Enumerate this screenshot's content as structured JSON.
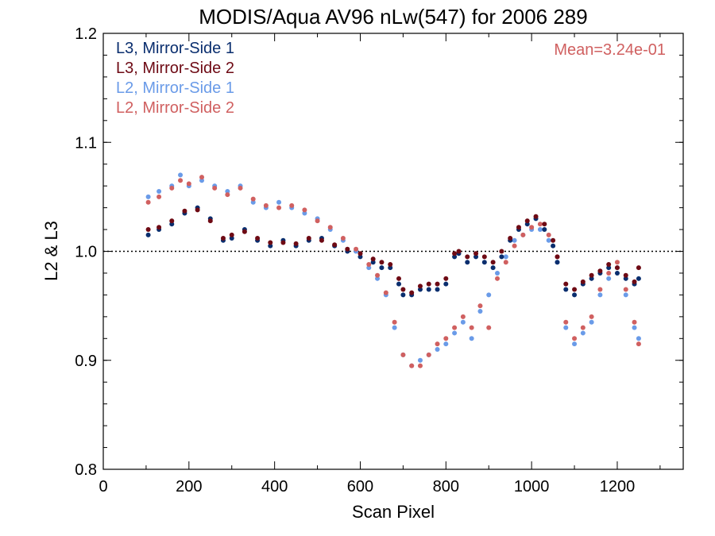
{
  "chart_data": {
    "type": "scatter",
    "title": "MODIS/Aqua AV96 nLw(547) for 2006 289",
    "xlabel": "Scan Pixel",
    "ylabel": "L2 & L3",
    "xlim": [
      0,
      1354
    ],
    "ylim": [
      0.8,
      1.2
    ],
    "x_ticks": [
      0,
      200,
      400,
      600,
      800,
      1000,
      1200
    ],
    "x_tick_labels": [
      "0",
      "200",
      "400",
      "600",
      "800",
      "1000",
      "1200"
    ],
    "y_ticks": [
      0.8,
      0.9,
      1.0,
      1.1,
      1.2
    ],
    "y_tick_labels": [
      "0.8",
      "0.9",
      "1.0",
      "1.1",
      "1.2"
    ],
    "reference_line": {
      "y": 1.0,
      "style": "dotted"
    },
    "annotation": {
      "text": "Mean=3.24e-01",
      "color": "#d06060",
      "placement": "top-right"
    },
    "legend_placement": "top-left",
    "grid": false,
    "series": [
      {
        "name": "L3, Mirror-Side 1",
        "color": "#0a2e6e",
        "x": [
          105,
          130,
          160,
          190,
          220,
          250,
          280,
          300,
          330,
          360,
          390,
          420,
          450,
          480,
          510,
          540,
          570,
          600,
          630,
          650,
          670,
          690,
          700,
          720,
          740,
          760,
          780,
          800,
          820,
          830,
          850,
          870,
          890,
          910,
          930,
          950,
          970,
          990,
          1010,
          1030,
          1050,
          1060,
          1080,
          1100,
          1120,
          1140,
          1160,
          1180,
          1200,
          1220,
          1240,
          1250
        ],
        "y": [
          1.015,
          1.02,
          1.025,
          1.035,
          1.04,
          1.03,
          1.01,
          1.012,
          1.02,
          1.01,
          1.005,
          1.01,
          1.005,
          1.01,
          1.012,
          1.005,
          1.0,
          0.995,
          0.99,
          0.985,
          0.985,
          0.97,
          0.96,
          0.96,
          0.965,
          0.965,
          0.965,
          0.97,
          0.995,
          0.998,
          0.99,
          0.995,
          0.99,
          0.985,
          0.995,
          1.01,
          1.02,
          1.025,
          1.03,
          1.02,
          1.005,
          0.99,
          0.965,
          0.96,
          0.97,
          0.975,
          0.98,
          0.985,
          0.98,
          0.975,
          0.97,
          0.975
        ]
      },
      {
        "name": "L3, Mirror-Side 2",
        "color": "#6e0a14",
        "x": [
          105,
          130,
          160,
          190,
          220,
          250,
          280,
          300,
          330,
          360,
          390,
          420,
          450,
          480,
          510,
          540,
          570,
          600,
          630,
          650,
          670,
          690,
          700,
          720,
          740,
          760,
          780,
          800,
          820,
          830,
          850,
          870,
          890,
          910,
          930,
          950,
          970,
          990,
          1010,
          1030,
          1050,
          1060,
          1080,
          1100,
          1120,
          1140,
          1160,
          1180,
          1200,
          1220,
          1240,
          1250
        ],
        "y": [
          1.02,
          1.022,
          1.028,
          1.037,
          1.038,
          1.028,
          1.012,
          1.015,
          1.018,
          1.012,
          1.008,
          1.008,
          1.007,
          1.012,
          1.01,
          1.006,
          1.002,
          0.998,
          0.993,
          0.99,
          0.988,
          0.975,
          0.965,
          0.962,
          0.968,
          0.97,
          0.97,
          0.975,
          0.998,
          1.0,
          0.995,
          0.998,
          0.995,
          0.99,
          1.0,
          1.012,
          1.022,
          1.028,
          1.032,
          1.025,
          1.01,
          0.995,
          0.97,
          0.965,
          0.972,
          0.978,
          0.982,
          0.988,
          0.985,
          0.978,
          0.972,
          0.985
        ]
      },
      {
        "name": "L2, Mirror-Side 1",
        "color": "#6a9be8",
        "x": [
          105,
          130,
          160,
          180,
          200,
          230,
          260,
          290,
          320,
          350,
          380,
          410,
          440,
          470,
          500,
          530,
          560,
          590,
          620,
          640,
          660,
          680,
          700,
          720,
          740,
          760,
          780,
          800,
          820,
          840,
          860,
          880,
          900,
          920,
          940,
          960,
          980,
          1000,
          1020,
          1040,
          1060,
          1080,
          1100,
          1120,
          1140,
          1160,
          1180,
          1200,
          1220,
          1240,
          1250
        ],
        "y": [
          1.05,
          1.055,
          1.06,
          1.07,
          1.06,
          1.065,
          1.06,
          1.055,
          1.06,
          1.045,
          1.04,
          1.045,
          1.04,
          1.035,
          1.03,
          1.02,
          1.01,
          1.0,
          0.985,
          0.975,
          0.96,
          0.93,
          0.905,
          0.895,
          0.9,
          0.905,
          0.91,
          0.915,
          0.925,
          0.935,
          0.92,
          0.945,
          0.96,
          0.98,
          0.995,
          1.01,
          1.015,
          1.02,
          1.02,
          1.01,
          0.99,
          0.93,
          0.915,
          0.925,
          0.935,
          0.96,
          0.975,
          0.985,
          0.96,
          0.93,
          0.92
        ]
      },
      {
        "name": "L2, Mirror-Side 2",
        "color": "#d06060",
        "x": [
          105,
          130,
          160,
          180,
          200,
          230,
          260,
          290,
          320,
          350,
          380,
          410,
          440,
          470,
          500,
          530,
          560,
          590,
          620,
          640,
          660,
          680,
          700,
          720,
          740,
          760,
          780,
          800,
          820,
          840,
          860,
          880,
          900,
          920,
          940,
          960,
          980,
          1000,
          1020,
          1040,
          1060,
          1080,
          1100,
          1120,
          1140,
          1160,
          1180,
          1200,
          1220,
          1240,
          1250
        ],
        "y": [
          1.045,
          1.05,
          1.058,
          1.065,
          1.062,
          1.068,
          1.058,
          1.052,
          1.058,
          1.048,
          1.042,
          1.04,
          1.042,
          1.038,
          1.028,
          1.022,
          1.012,
          1.002,
          0.988,
          0.978,
          0.962,
          0.935,
          0.905,
          0.895,
          0.895,
          0.905,
          0.915,
          0.92,
          0.93,
          0.94,
          0.93,
          0.95,
          0.93,
          0.975,
          0.99,
          1.005,
          1.015,
          1.022,
          1.025,
          1.015,
          0.995,
          0.935,
          0.92,
          0.93,
          0.94,
          0.965,
          0.98,
          0.99,
          0.965,
          0.935,
          0.915
        ]
      }
    ]
  }
}
